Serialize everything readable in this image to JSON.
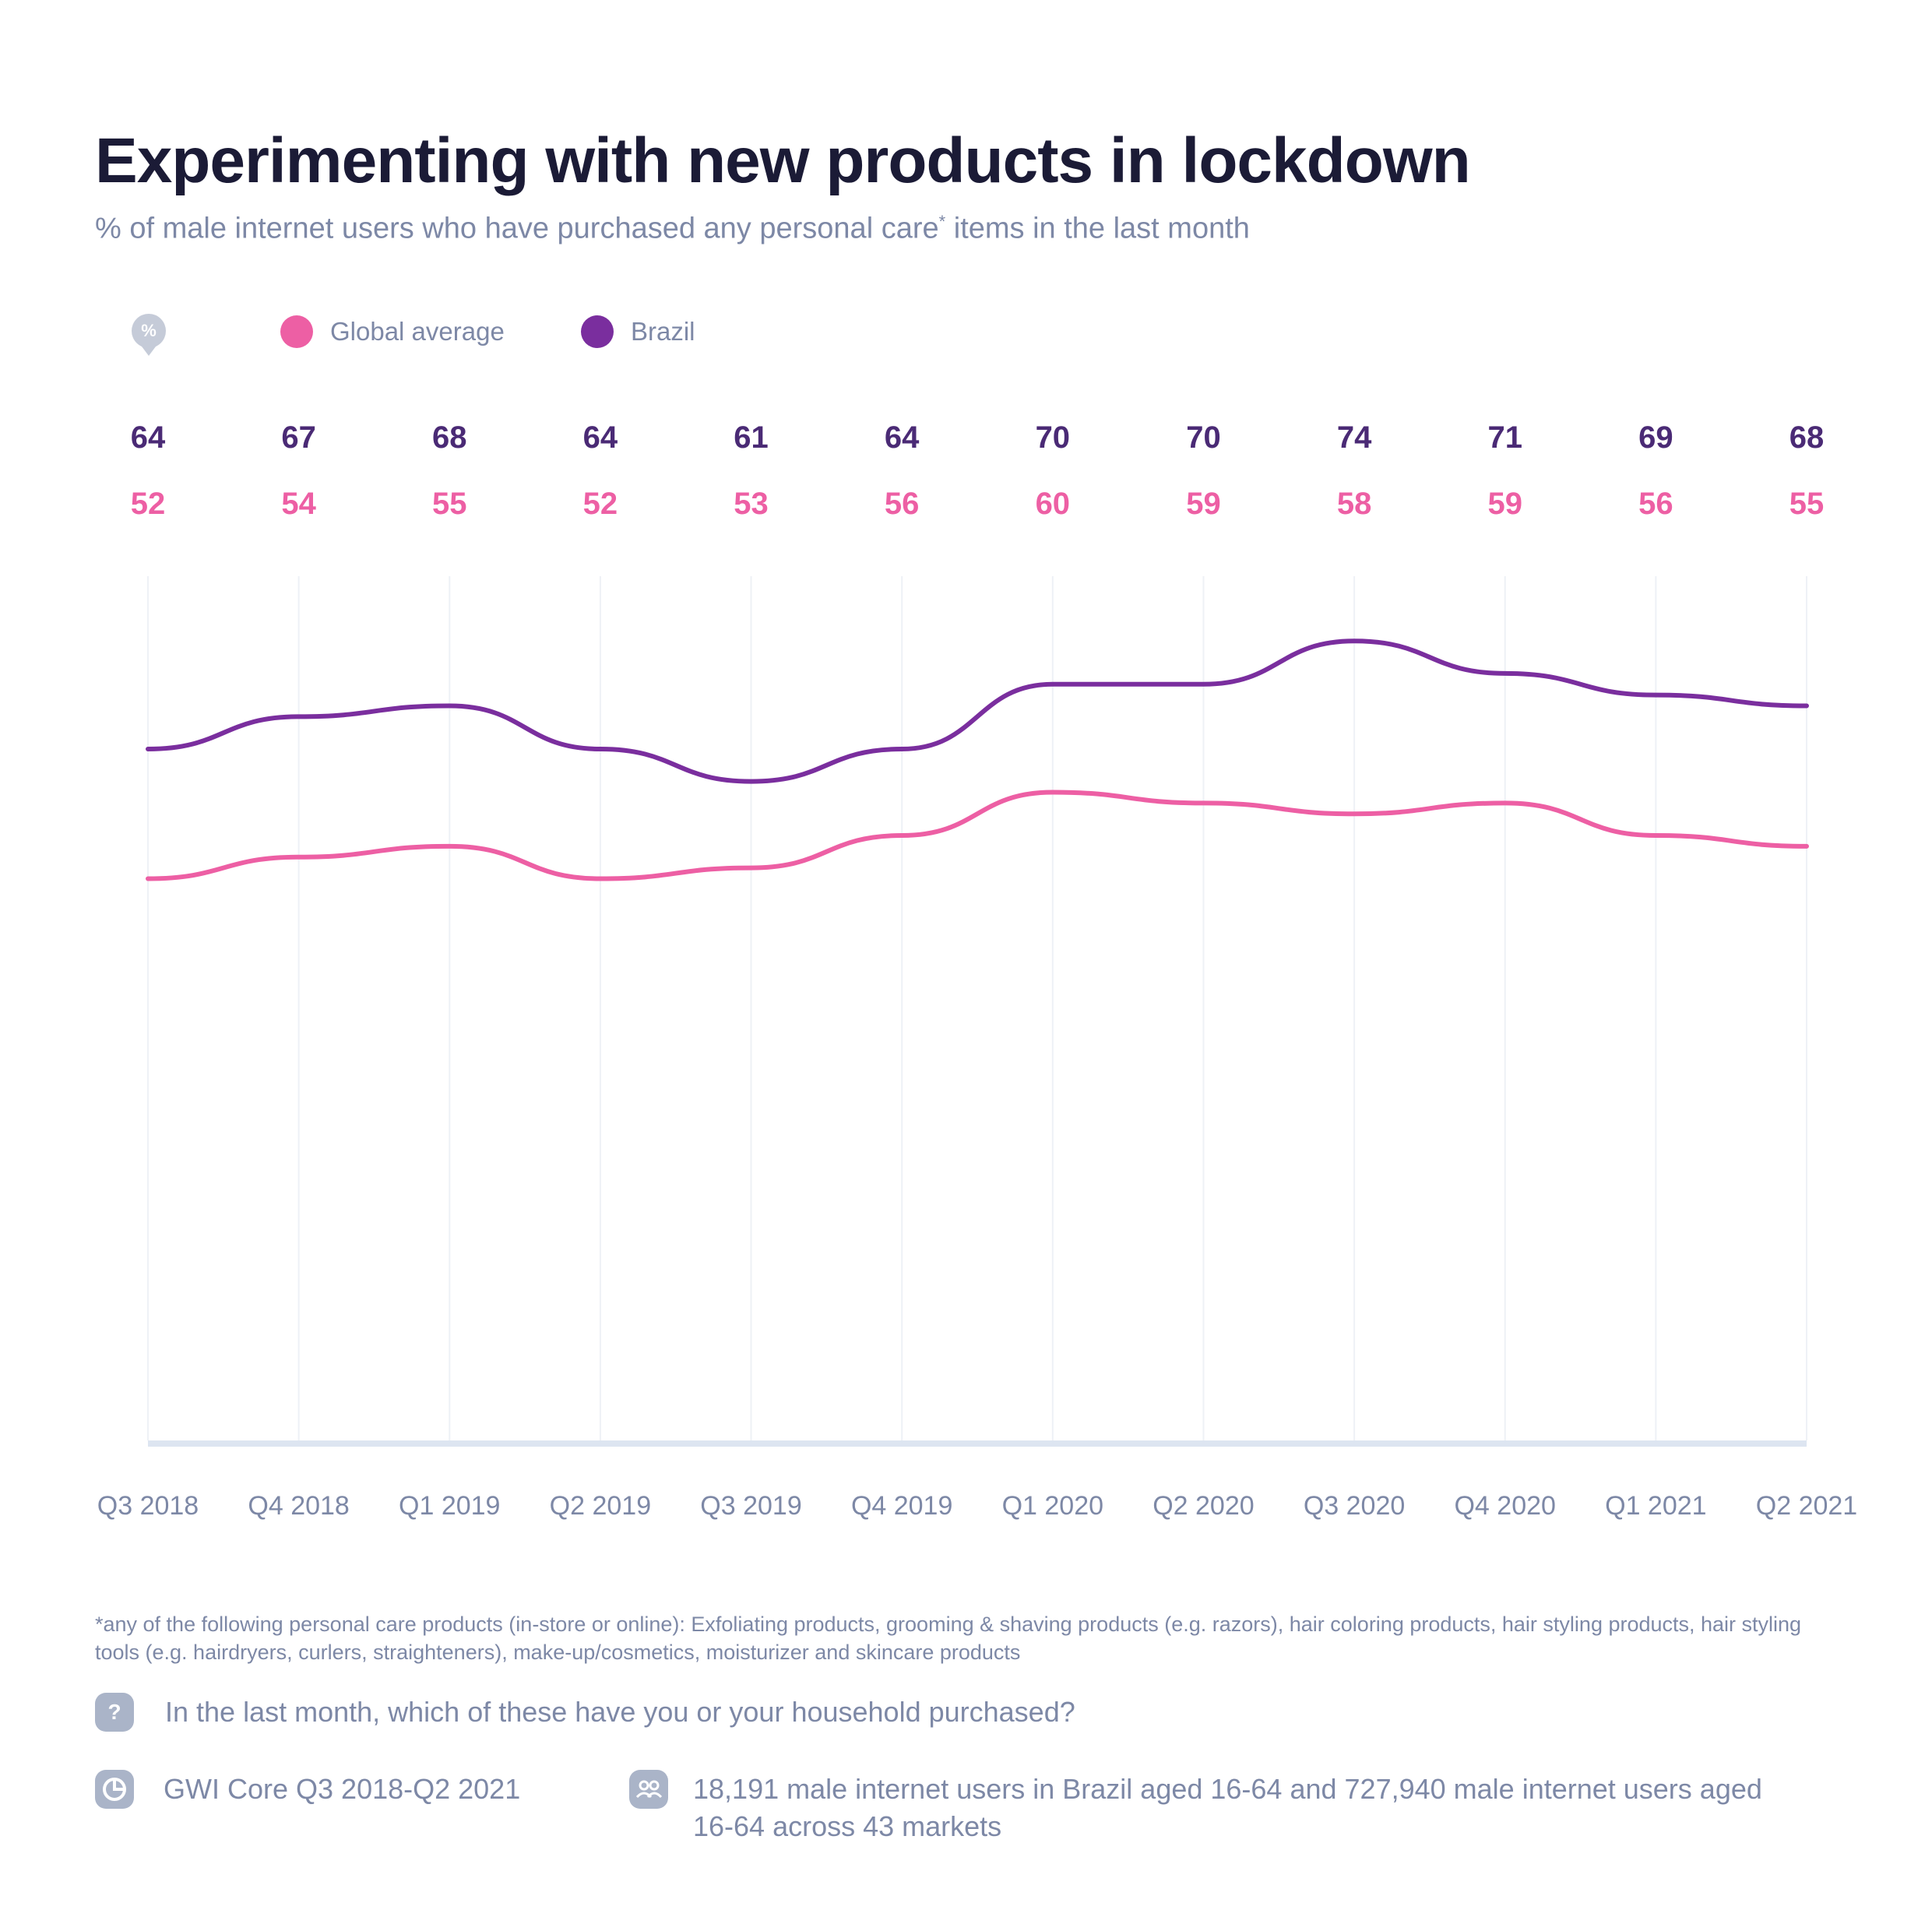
{
  "header": {
    "title": "Experimenting with new products in lockdown",
    "subtitle": "% of male internet users who have purchased any personal care",
    "subtitle_mark": "*",
    "subtitle_end": " items in the last month"
  },
  "legend": {
    "unit_icon": "%",
    "items": [
      {
        "label": "Global average",
        "color": "#ed5fa4"
      },
      {
        "label": "Brazil",
        "color": "#7a2e9e"
      }
    ]
  },
  "chart_data": {
    "type": "line",
    "title": "Experimenting with new products in lockdown",
    "categories": [
      "Q3 2018",
      "Q4 2018",
      "Q1 2019",
      "Q2 2019",
      "Q3 2019",
      "Q4 2019",
      "Q1 2020",
      "Q2 2020",
      "Q3 2020",
      "Q4 2020",
      "Q1 2021",
      "Q2 2021"
    ],
    "series": [
      {
        "name": "Brazil",
        "color": "#7a2e9e",
        "label_color": "#4a2a75",
        "values": [
          64,
          67,
          68,
          64,
          61,
          64,
          70,
          70,
          74,
          71,
          69,
          68
        ]
      },
      {
        "name": "Global average",
        "color": "#ed5fa4",
        "label_color": "#ed5fa4",
        "values": [
          52,
          54,
          55,
          52,
          53,
          56,
          60,
          59,
          58,
          59,
          56,
          55
        ]
      }
    ],
    "ylim": [
      0,
      80
    ],
    "grid": "vertical",
    "legend_position": "top-left"
  },
  "footer": {
    "footnote": "*any of the following personal care products (in-store or online): Exfoliating products, grooming & shaving products (e.g. razors), hair coloring products, hair styling products, hair styling tools (e.g. hairdryers, curlers, straighteners), make-up/cosmetics, moisturizer and skincare products",
    "question_icon": "?",
    "question": "In the last month, which of these have you or your household purchased?",
    "source_icon": "pie-chart-icon",
    "source": "GWI Core Q3 2018-Q2 2021",
    "sample_icon": "users-icon",
    "sample": "18,191 male internet users in Brazil aged 16-64 and 727,940 male internet users aged 16-64 across 43 markets"
  }
}
